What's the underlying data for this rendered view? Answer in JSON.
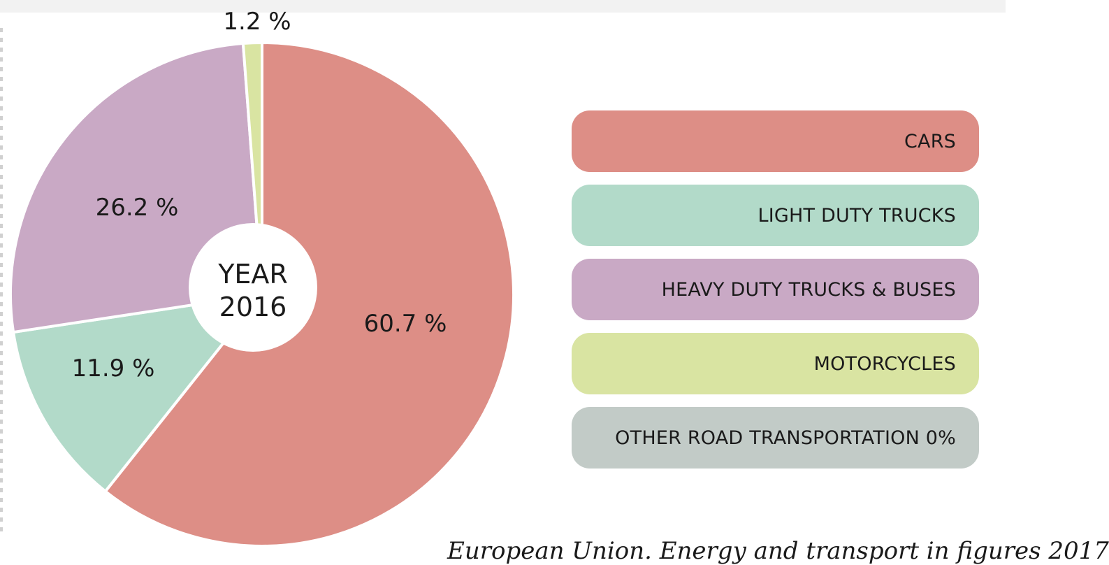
{
  "chart_data": {
    "type": "pie",
    "center_label_line1": "YEAR",
    "center_label_line2": "2016",
    "slices": [
      {
        "name": "CARS",
        "value": 60.7,
        "label": "60.7 %",
        "color": "#dd8e86"
      },
      {
        "name": "LIGHT DUTY TRUCKS",
        "value": 11.9,
        "label": "11.9 %",
        "color": "#b2dac9"
      },
      {
        "name": "HEAVY DUTY TRUCKS & BUSES",
        "value": 26.2,
        "label": "26.2 %",
        "color": "#c9a9c5"
      },
      {
        "name": "MOTORCYCLES",
        "value": 1.2,
        "label": "1.2 %",
        "color": "#d9e4a2"
      },
      {
        "name": "OTHER ROAD TRANSPORTATION 0%",
        "value": 0,
        "label": "",
        "color": "#c2cbc7"
      }
    ],
    "legend_position": "right"
  },
  "source_text": "European Union. Energy and transport in figures 2017"
}
